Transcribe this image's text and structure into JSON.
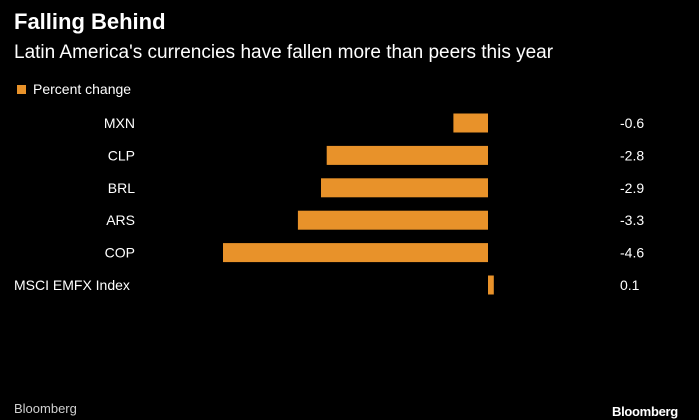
{
  "header": {
    "title": "Falling Behind",
    "subtitle": "Latin America's currencies have fallen more than peers this year"
  },
  "footer": {
    "source": "Bloomberg",
    "brand": "Bloomberg"
  },
  "colors": {
    "bar": "#e8922a",
    "background": "#000000",
    "text": "#ffffff"
  },
  "chart_data": {
    "type": "bar",
    "orientation": "horizontal",
    "legend": [
      "Percent change"
    ],
    "legend_placement": "top-left",
    "grid": false,
    "categories": [
      "MXN",
      "CLP",
      "BRL",
      "ARS",
      "COP",
      "MSCI EMFX Index"
    ],
    "value_labels": [
      "-0.6",
      "-2.8",
      "-2.9",
      "-3.3",
      "-4.6",
      "0.1"
    ],
    "series": [
      {
        "name": "Percent change",
        "values": [
          -0.6,
          -2.8,
          -2.9,
          -3.3,
          -4.6,
          0.1
        ]
      }
    ],
    "xlim": [
      -4.6,
      0.1
    ]
  }
}
